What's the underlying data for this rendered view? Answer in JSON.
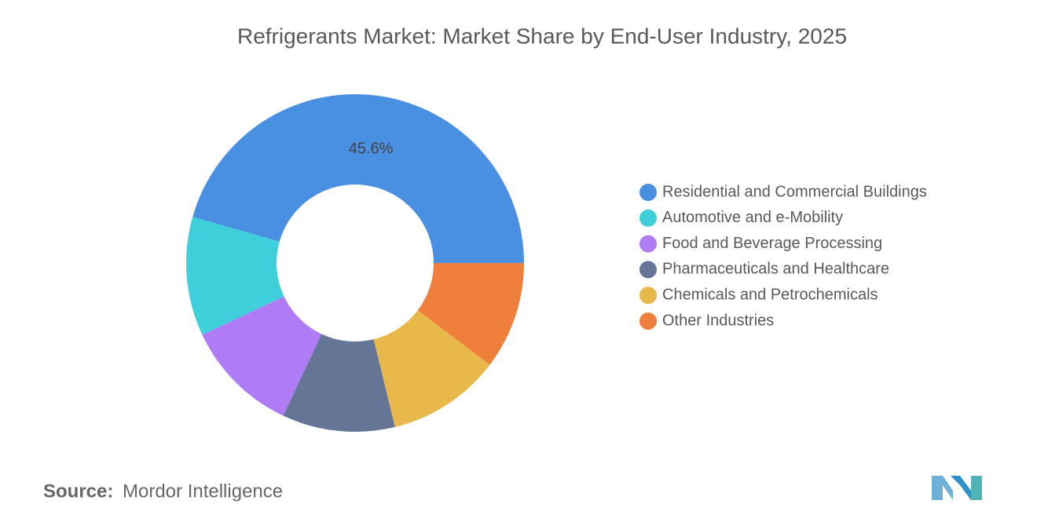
{
  "chart_data": {
    "type": "donut",
    "title": "Refrigerants Market: Market Share by End-User Industry, 2025",
    "categories": [
      "Residential and Commercial Buildings",
      "Automotive and e-Mobility",
      "Food and Beverage Processing",
      "Pharmaceuticals and Healthcare",
      "Chemicals and Petrochemicals",
      "Other Industries"
    ],
    "values": [
      45.6,
      11.4,
      11.0,
      10.8,
      10.9,
      10.3
    ],
    "value_labels": [
      "45.6%",
      null,
      null,
      null,
      null,
      null
    ],
    "colors": [
      "#4a90e2",
      "#3fcfdb",
      "#b07cf6",
      "#657596",
      "#e9b84a",
      "#f07f3c"
    ],
    "legend": "right"
  },
  "source": {
    "label": "Source:",
    "text": "Mordor Intelligence"
  }
}
